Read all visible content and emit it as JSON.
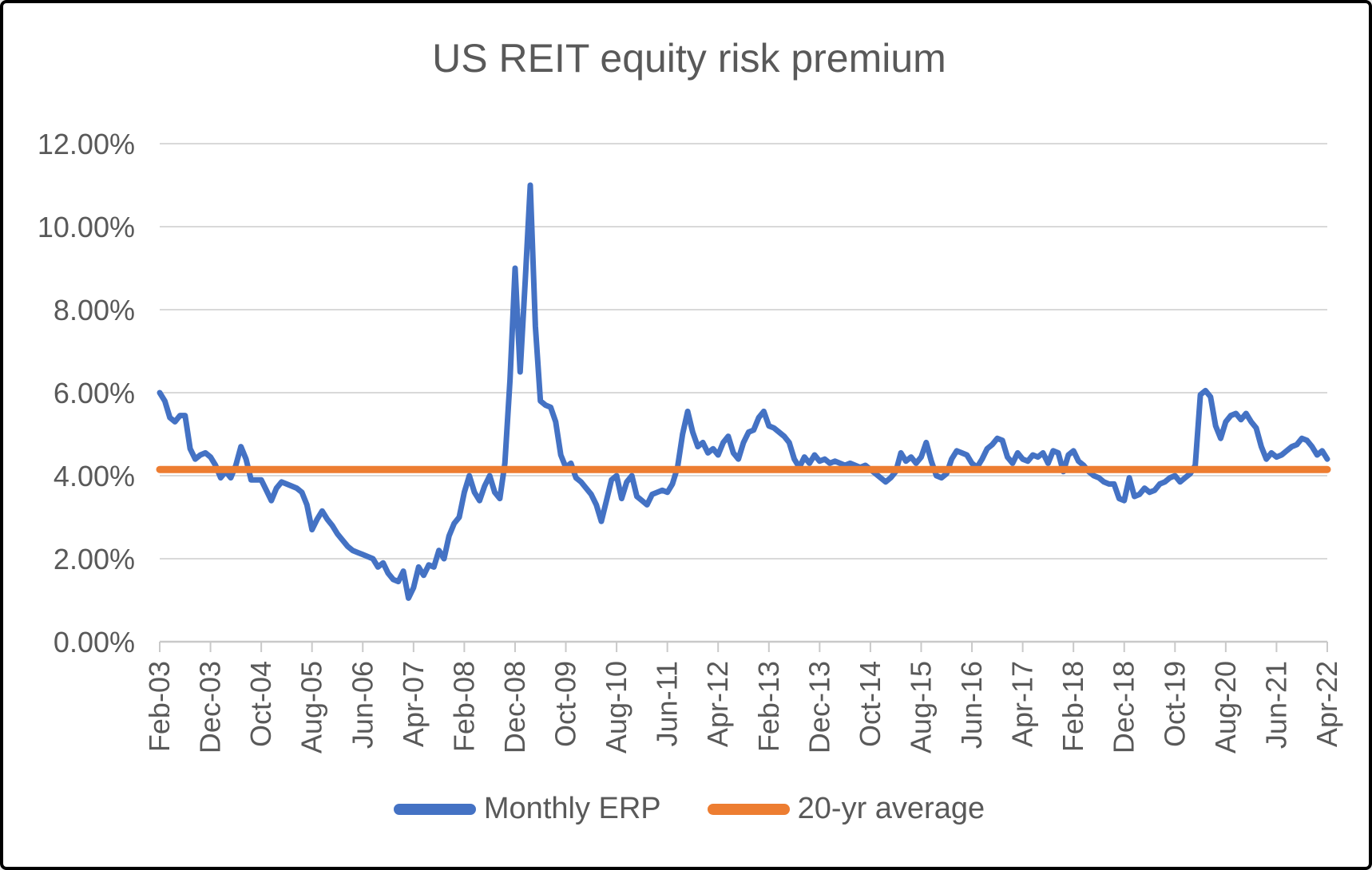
{
  "chart_data": {
    "type": "line",
    "title": "US REIT equity risk premium",
    "xlabel": "",
    "ylabel": "",
    "ylim": [
      0,
      12
    ],
    "y_unit": "%",
    "grid": "horizontal",
    "legend_position": "bottom",
    "x_label_rotation_deg": -90,
    "x_tick_interval_months": 10,
    "x_range": {
      "start": "Feb-03",
      "end": "Apr-22",
      "n_points": 231,
      "frequency": "monthly"
    },
    "y_tick_labels": [
      "0.00%",
      "2.00%",
      "4.00%",
      "6.00%",
      "8.00%",
      "10.00%",
      "12.00%"
    ],
    "x_tick_labels": [
      "Feb-03",
      "Dec-03",
      "Oct-04",
      "Aug-05",
      "Jun-06",
      "Apr-07",
      "Feb-08",
      "Dec-08",
      "Oct-09",
      "Aug-10",
      "Jun-11",
      "Apr-12",
      "Feb-13",
      "Dec-13",
      "Oct-14",
      "Aug-15",
      "Jun-16",
      "Apr-17",
      "Feb-18",
      "Dec-18",
      "Oct-19",
      "Aug-20",
      "Jun-21",
      "Apr-22"
    ],
    "colors": {
      "gridline": "#D9D9D9",
      "axis_line": "#C9C9C9",
      "text": "#595959"
    },
    "series": [
      {
        "name": "Monthly ERP",
        "color": "#4472C4",
        "values": [
          6.0,
          5.8,
          5.4,
          5.3,
          5.45,
          5.45,
          4.65,
          4.4,
          4.5,
          4.55,
          4.45,
          4.25,
          3.95,
          4.1,
          3.95,
          4.25,
          4.7,
          4.4,
          3.9,
          3.9,
          3.9,
          3.65,
          3.4,
          3.7,
          3.85,
          3.8,
          3.75,
          3.7,
          3.6,
          3.3,
          2.7,
          2.95,
          3.15,
          2.95,
          2.8,
          2.6,
          2.45,
          2.3,
          2.2,
          2.15,
          2.1,
          2.05,
          2.0,
          1.8,
          1.9,
          1.65,
          1.5,
          1.45,
          1.7,
          1.05,
          1.3,
          1.8,
          1.6,
          1.85,
          1.8,
          2.2,
          2.0,
          2.55,
          2.85,
          3.0,
          3.6,
          4.0,
          3.6,
          3.4,
          3.75,
          4.0,
          3.6,
          3.45,
          4.3,
          6.3,
          9.0,
          6.5,
          8.7,
          11.0,
          7.6,
          5.8,
          5.7,
          5.65,
          5.3,
          4.5,
          4.2,
          4.3,
          3.95,
          3.85,
          3.7,
          3.55,
          3.3,
          2.9,
          3.4,
          3.9,
          4.0,
          3.45,
          3.85,
          4.0,
          3.5,
          3.4,
          3.3,
          3.55,
          3.6,
          3.65,
          3.6,
          3.8,
          4.2,
          5.0,
          5.55,
          5.05,
          4.7,
          4.8,
          4.55,
          4.65,
          4.5,
          4.8,
          4.95,
          4.55,
          4.4,
          4.8,
          5.05,
          5.1,
          5.4,
          5.55,
          5.2,
          5.15,
          5.05,
          4.95,
          4.8,
          4.4,
          4.2,
          4.45,
          4.3,
          4.5,
          4.35,
          4.4,
          4.3,
          4.35,
          4.3,
          4.25,
          4.3,
          4.25,
          4.2,
          4.25,
          4.15,
          4.05,
          3.95,
          3.85,
          3.95,
          4.1,
          4.55,
          4.35,
          4.45,
          4.3,
          4.45,
          4.8,
          4.35,
          4.0,
          3.95,
          4.05,
          4.4,
          4.6,
          4.55,
          4.5,
          4.3,
          4.2,
          4.4,
          4.65,
          4.75,
          4.9,
          4.85,
          4.45,
          4.3,
          4.55,
          4.4,
          4.35,
          4.5,
          4.45,
          4.55,
          4.3,
          4.6,
          4.55,
          4.1,
          4.5,
          4.6,
          4.35,
          4.25,
          4.1,
          4.0,
          3.95,
          3.85,
          3.8,
          3.8,
          3.45,
          3.4,
          3.95,
          3.5,
          3.55,
          3.7,
          3.6,
          3.65,
          3.8,
          3.85,
          3.95,
          4.0,
          3.85,
          3.95,
          4.05,
          4.25,
          5.95,
          6.05,
          5.9,
          5.2,
          4.9,
          5.3,
          5.45,
          5.5,
          5.35,
          5.5,
          5.3,
          5.15,
          4.7,
          4.4,
          4.55,
          4.45,
          4.5,
          4.6,
          4.7,
          4.75,
          4.9,
          4.85,
          4.7,
          4.5,
          4.6,
          4.4
        ]
      },
      {
        "name": "20-yr average",
        "color": "#ED7D31",
        "constant_value": 4.15
      }
    ]
  }
}
